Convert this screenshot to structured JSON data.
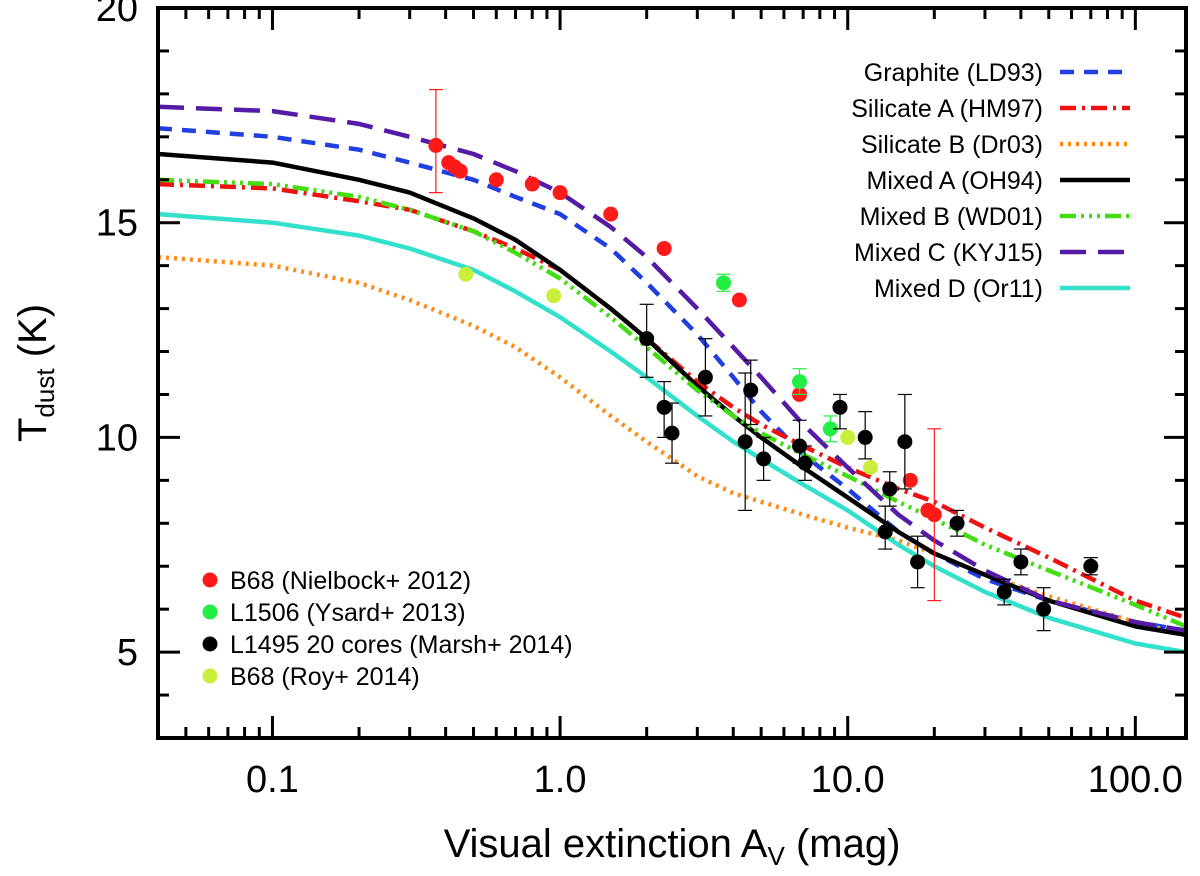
{
  "chart_data": {
    "type": "line",
    "xscale": "log",
    "xlim": [
      0.04,
      150
    ],
    "ylim": [
      3,
      20
    ],
    "xlabel_main": "Visual extinction A",
    "xlabel_sub": "V",
    "xlabel_unit": " (mag)",
    "ylabel_main": "T",
    "ylabel_sub": "dust",
    "ylabel_unit": " (K)",
    "x_ticks": [
      {
        "value": 0.1,
        "label": "0.1"
      },
      {
        "value": 1.0,
        "label": "1.0"
      },
      {
        "value": 10.0,
        "label": "10.0"
      },
      {
        "value": 100.0,
        "label": "100.0"
      }
    ],
    "y_ticks": [
      {
        "value": 5,
        "label": "5"
      },
      {
        "value": 10,
        "label": "10"
      },
      {
        "value": 15,
        "label": "15"
      },
      {
        "value": 20,
        "label": "20"
      }
    ],
    "series": [
      {
        "name": "Graphite (LD93)",
        "color": "#1f3fe0",
        "dash": "14,10",
        "x": [
          0.04,
          0.1,
          0.2,
          0.3,
          0.5,
          0.7,
          1,
          1.5,
          2,
          3,
          4,
          5,
          7,
          10,
          15,
          20,
          30,
          50,
          100,
          150
        ],
        "values": [
          17.2,
          17.0,
          16.7,
          16.4,
          16.0,
          15.6,
          15.2,
          14.4,
          13.6,
          12.4,
          11.4,
          10.6,
          9.6,
          8.8,
          7.8,
          7.3,
          6.7,
          6.2,
          5.7,
          5.5
        ]
      },
      {
        "name": "Silicate A (HM97)",
        "color": "#ee1111",
        "dash": "16,6,3,6",
        "x": [
          0.04,
          0.1,
          0.2,
          0.3,
          0.5,
          0.7,
          1,
          1.5,
          2,
          3,
          4,
          5,
          7,
          10,
          15,
          20,
          30,
          50,
          100,
          150
        ],
        "values": [
          15.9,
          15.8,
          15.5,
          15.3,
          14.8,
          14.4,
          13.9,
          13.0,
          12.3,
          11.3,
          10.7,
          10.3,
          9.8,
          9.3,
          8.8,
          8.5,
          7.9,
          7.2,
          6.2,
          5.8
        ]
      },
      {
        "name": "Silicate B (Dr03)",
        "color": "#ff8c1a",
        "dash": "3,5",
        "x": [
          0.04,
          0.1,
          0.2,
          0.3,
          0.5,
          0.7,
          1,
          1.5,
          2,
          3,
          4,
          5,
          7,
          10,
          15,
          20,
          30,
          50,
          100,
          150
        ],
        "values": [
          14.2,
          14.0,
          13.6,
          13.2,
          12.6,
          12.1,
          11.4,
          10.5,
          9.9,
          9.1,
          8.7,
          8.5,
          8.2,
          7.9,
          7.6,
          7.3,
          6.8,
          6.3,
          5.7,
          5.4
        ]
      },
      {
        "name": "Mixed A (OH94)",
        "color": "#000000",
        "dash": "",
        "x": [
          0.04,
          0.1,
          0.2,
          0.3,
          0.5,
          0.7,
          1,
          1.5,
          2,
          3,
          4,
          5,
          7,
          10,
          15,
          20,
          30,
          50,
          100,
          150
        ],
        "values": [
          16.6,
          16.4,
          16.0,
          15.7,
          15.1,
          14.6,
          13.9,
          13.0,
          12.3,
          11.2,
          10.5,
          10.0,
          9.3,
          8.6,
          7.8,
          7.3,
          6.8,
          6.2,
          5.6,
          5.4
        ]
      },
      {
        "name": "Mixed B (WD01)",
        "color": "#44dd11",
        "dash": "16,5,3,5,3,5,3,5",
        "x": [
          0.04,
          0.1,
          0.2,
          0.3,
          0.5,
          0.7,
          1,
          1.5,
          2,
          3,
          4,
          5,
          7,
          10,
          15,
          20,
          30,
          50,
          100,
          150
        ],
        "values": [
          16.0,
          15.9,
          15.6,
          15.3,
          14.8,
          14.3,
          13.7,
          12.8,
          12.1,
          11.1,
          10.5,
          10.1,
          9.6,
          9.1,
          8.5,
          8.1,
          7.5,
          6.9,
          6.1,
          5.6
        ]
      },
      {
        "name": "Mixed C (KYJ15)",
        "color": "#551aa6",
        "dash": "26,12",
        "x": [
          0.04,
          0.1,
          0.2,
          0.3,
          0.5,
          0.7,
          1,
          1.5,
          2,
          3,
          4,
          5,
          7,
          10,
          15,
          20,
          30,
          50,
          100,
          150
        ],
        "values": [
          17.7,
          17.6,
          17.3,
          17.0,
          16.6,
          16.2,
          15.7,
          14.9,
          14.2,
          13.0,
          12.1,
          11.4,
          10.3,
          9.3,
          8.2,
          7.6,
          6.9,
          6.2,
          5.7,
          5.5
        ]
      },
      {
        "name": "Mixed D (Or11)",
        "color": "#33e0cc",
        "dash": "",
        "x": [
          0.04,
          0.1,
          0.2,
          0.3,
          0.5,
          0.7,
          1,
          1.5,
          2,
          3,
          4,
          5,
          7,
          10,
          15,
          20,
          30,
          50,
          100,
          150
        ],
        "values": [
          15.2,
          15.0,
          14.7,
          14.4,
          13.9,
          13.4,
          12.8,
          12.0,
          11.4,
          10.5,
          9.9,
          9.5,
          8.9,
          8.3,
          7.5,
          7.0,
          6.4,
          5.8,
          5.2,
          5.0
        ]
      }
    ],
    "scatter": [
      {
        "name": "B68 (Nielbock+ 2012)",
        "color": "#ff1a1a",
        "points": [
          {
            "x": 0.37,
            "y": 16.8,
            "lo": 15.7,
            "hi": 18.1
          },
          {
            "x": 0.41,
            "y": 16.4
          },
          {
            "x": 0.43,
            "y": 16.3
          },
          {
            "x": 0.45,
            "y": 16.2
          },
          {
            "x": 0.6,
            "y": 16.0
          },
          {
            "x": 0.8,
            "y": 15.9
          },
          {
            "x": 1.0,
            "y": 15.7
          },
          {
            "x": 1.5,
            "y": 15.2
          },
          {
            "x": 2.3,
            "y": 14.4
          },
          {
            "x": 4.2,
            "y": 13.2
          },
          {
            "x": 6.8,
            "y": 11.0
          },
          {
            "x": 16.5,
            "y": 9.0
          },
          {
            "x": 19.0,
            "y": 8.3
          },
          {
            "x": 20.0,
            "y": 8.2,
            "lo": 6.2,
            "hi": 10.2
          }
        ]
      },
      {
        "name": "L1506 (Ysard+ 2013)",
        "color": "#22ee44",
        "points": [
          {
            "x": 3.7,
            "y": 13.6,
            "lo": 13.4,
            "hi": 13.8
          },
          {
            "x": 6.8,
            "y": 11.3,
            "lo": 11.0,
            "hi": 11.6
          },
          {
            "x": 8.7,
            "y": 10.2,
            "lo": 9.9,
            "hi": 10.5
          }
        ]
      },
      {
        "name": "L1495 20 cores (Marsh+ 2014)",
        "color": "#000000",
        "points": [
          {
            "x": 2.0,
            "y": 12.3,
            "lo": 11.4,
            "hi": 13.1
          },
          {
            "x": 2.3,
            "y": 10.7,
            "lo": 10.0,
            "hi": 11.3
          },
          {
            "x": 2.45,
            "y": 10.1,
            "lo": 9.4,
            "hi": 10.8
          },
          {
            "x": 3.2,
            "y": 11.4,
            "lo": 10.5,
            "hi": 12.3
          },
          {
            "x": 4.4,
            "y": 9.9,
            "lo": 8.3,
            "hi": 11.5
          },
          {
            "x": 4.6,
            "y": 11.1,
            "lo": 10.3,
            "hi": 11.8
          },
          {
            "x": 5.1,
            "y": 9.5,
            "lo": 9.0,
            "hi": 10.0
          },
          {
            "x": 6.8,
            "y": 9.8,
            "lo": 9.4,
            "hi": 10.4
          },
          {
            "x": 7.1,
            "y": 9.4,
            "lo": 9.0,
            "hi": 9.8
          },
          {
            "x": 9.4,
            "y": 10.7,
            "lo": 10.2,
            "hi": 11.0
          },
          {
            "x": 11.5,
            "y": 10.0,
            "lo": 9.5,
            "hi": 10.6
          },
          {
            "x": 13.5,
            "y": 7.8,
            "lo": 7.4,
            "hi": 8.4
          },
          {
            "x": 14.0,
            "y": 8.8,
            "lo": 8.4,
            "hi": 9.2
          },
          {
            "x": 15.8,
            "y": 9.9,
            "lo": 8.8,
            "hi": 11.0
          },
          {
            "x": 17.5,
            "y": 7.1,
            "lo": 6.5,
            "hi": 7.7
          },
          {
            "x": 24.0,
            "y": 8.0,
            "lo": 7.7,
            "hi": 8.3
          },
          {
            "x": 35.0,
            "y": 6.4,
            "lo": 6.1,
            "hi": 6.7
          },
          {
            "x": 40.0,
            "y": 7.1,
            "lo": 6.8,
            "hi": 7.4
          },
          {
            "x": 48.0,
            "y": 6.0,
            "lo": 5.5,
            "hi": 6.5
          },
          {
            "x": 70.0,
            "y": 7.0,
            "lo": 6.8,
            "hi": 7.2
          }
        ]
      },
      {
        "name": "B68 (Roy+ 2014)",
        "color": "#c8f03a",
        "points": [
          {
            "x": 0.47,
            "y": 13.8
          },
          {
            "x": 0.95,
            "y": 13.3
          },
          {
            "x": 10.0,
            "y": 10.0
          },
          {
            "x": 12.0,
            "y": 9.3
          }
        ]
      }
    ]
  }
}
